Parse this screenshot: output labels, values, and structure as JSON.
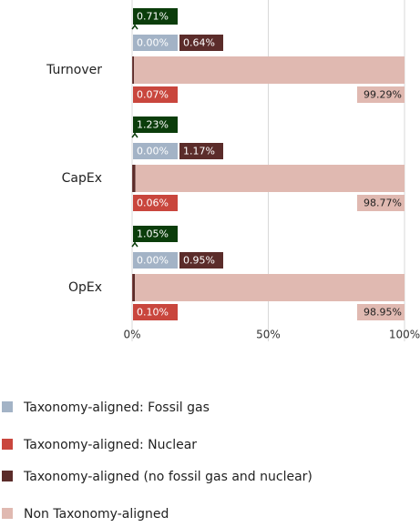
{
  "chart_data": {
    "type": "stacked_bar_horizontal",
    "categories": [
      "Turnover",
      "CapEx",
      "OpEx"
    ],
    "series": [
      {
        "name": "Taxonomy-aligned: Fossil gas",
        "color": "#a3b3c6",
        "values": [
          0.0,
          0.0,
          0.0
        ],
        "value_labels": [
          "0.00%",
          "0.00%",
          "0.00%"
        ]
      },
      {
        "name": "Taxonomy-aligned: Nuclear",
        "color": "#c9463d",
        "values": [
          0.07,
          0.06,
          0.1
        ],
        "value_labels": [
          "0.07%",
          "0.06%",
          "0.10%"
        ]
      },
      {
        "name": "Taxonomy-aligned (no fossil gas and nuclear)",
        "color": "#5b2c2a",
        "values": [
          0.64,
          1.17,
          0.95
        ],
        "value_labels": [
          "0.64%",
          "1.17%",
          "0.95%"
        ]
      },
      {
        "name": "Non Taxonomy-aligned",
        "color": "#e0b9b1",
        "values": [
          99.29,
          98.77,
          98.95
        ],
        "value_labels": [
          "99.29%",
          "98.77%",
          "98.95%"
        ]
      }
    ],
    "totals": {
      "color": "#0b3d0b",
      "values": [
        0.71,
        1.23,
        1.05
      ],
      "value_labels": [
        "0.71%",
        "1.23%",
        "1.05%"
      ]
    },
    "xlim": [
      0,
      100
    ],
    "xticks": [
      {
        "value": 0,
        "label": "0%"
      },
      {
        "value": 50,
        "label": "50%"
      },
      {
        "value": 100,
        "label": "100%"
      }
    ],
    "grid": true
  }
}
